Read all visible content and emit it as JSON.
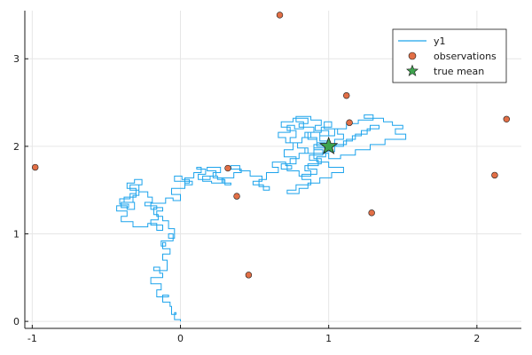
{
  "chart_data": {
    "type": "scatter",
    "title": "",
    "xlabel": "",
    "ylabel": "",
    "xlim": [
      -1.05,
      2.3
    ],
    "ylim": [
      -0.08,
      3.55
    ],
    "xticks": [
      -1,
      0,
      1,
      2
    ],
    "yticks": [
      0,
      1,
      2,
      3
    ],
    "grid": true,
    "legend_position": "top-right",
    "colors": {
      "y1": "#1ca3ec",
      "observations": "#e26f46",
      "true_mean": "#3ea44e",
      "axis": "#1a1a1a",
      "grid": "#e6e6e6"
    },
    "series": [
      {
        "name": "y1",
        "type": "line",
        "step": "pre",
        "x": [
          0.0,
          -0.04,
          -0.03,
          -0.06,
          -0.07,
          -0.12,
          -0.08,
          -0.16,
          -0.13,
          -0.2,
          -0.12,
          -0.14,
          -0.18,
          -0.09,
          -0.12,
          -0.07,
          -0.12,
          -0.1,
          -0.13,
          -0.05,
          -0.08,
          -0.04,
          -0.08,
          -0.12,
          -0.16,
          -0.12,
          -0.18,
          -0.15,
          -0.2,
          -0.12,
          -0.16,
          -0.22,
          -0.32,
          -0.4,
          -0.36,
          -0.43,
          -0.36,
          -0.31,
          -0.38,
          -0.3,
          -0.34,
          -0.26,
          -0.31,
          -0.36,
          -0.3,
          -0.34,
          -0.41,
          -0.35,
          -0.4,
          -0.32,
          -0.28,
          -0.34,
          -0.28,
          -0.22,
          -0.19,
          -0.24,
          -0.16,
          -0.2,
          -0.1,
          -0.05,
          0.0,
          -0.06,
          0.03,
          0.06,
          0.01,
          -0.04,
          0.08,
          0.03,
          0.09,
          0.14,
          0.11,
          0.17,
          0.12,
          0.2,
          0.24,
          0.18,
          0.27,
          0.22,
          0.29,
          0.21,
          0.15,
          0.25,
          0.3,
          0.34,
          0.28,
          0.36,
          0.41,
          0.34,
          0.4,
          0.47,
          0.55,
          0.49,
          0.56,
          0.6,
          0.53,
          0.58,
          0.66,
          0.62,
          0.71,
          0.75,
          0.68,
          0.74,
          0.8,
          0.86,
          0.79,
          0.74,
          0.78,
          0.72,
          0.77,
          0.83,
          0.78,
          0.88,
          0.95,
          0.91,
          1.0,
          0.94,
          0.99,
          0.92,
          0.86,
          0.95,
          1.02,
          0.97,
          1.06,
          1.1,
          1.04,
          0.9,
          0.96,
          0.87,
          0.93,
          0.84,
          0.88,
          0.8,
          0.72,
          0.78,
          0.7,
          0.76,
          0.82,
          0.88,
          0.94,
          1.04,
          1.12,
          1.2,
          1.3,
          1.24,
          1.37,
          1.43,
          1.5,
          1.45,
          1.52,
          1.38,
          1.28,
          1.18,
          1.08,
          1.0,
          0.9,
          0.98,
          0.92,
          0.84,
          0.9,
          0.8,
          0.86,
          0.76,
          0.68,
          0.74,
          0.66,
          0.71,
          0.79,
          0.84,
          0.9,
          0.95,
          0.86,
          0.92,
          0.82,
          0.88,
          0.78,
          0.72,
          0.8,
          0.86,
          0.94,
          1.02,
          1.1,
          1.0,
          0.92,
          0.98,
          1.04,
          1.1,
          1.16,
          1.22,
          1.28,
          1.34,
          1.26,
          1.18,
          1.12,
          1.05,
          1.0
        ],
        "y": [
          0.0,
          0.02,
          0.1,
          0.08,
          0.17,
          0.22,
          0.3,
          0.28,
          0.36,
          0.43,
          0.5,
          0.55,
          0.62,
          0.58,
          0.7,
          0.77,
          0.83,
          0.9,
          0.86,
          0.92,
          1.0,
          0.95,
          1.06,
          1.15,
          1.2,
          1.26,
          1.3,
          1.22,
          1.16,
          1.1,
          1.04,
          1.12,
          1.08,
          1.14,
          1.2,
          1.26,
          1.32,
          1.28,
          1.36,
          1.42,
          1.5,
          1.56,
          1.62,
          1.58,
          1.52,
          1.46,
          1.4,
          1.34,
          1.3,
          1.36,
          1.44,
          1.5,
          1.56,
          1.48,
          1.42,
          1.36,
          1.32,
          1.28,
          1.35,
          1.41,
          1.38,
          1.45,
          1.52,
          1.58,
          1.62,
          1.66,
          1.6,
          1.56,
          1.64,
          1.7,
          1.76,
          1.74,
          1.68,
          1.62,
          1.66,
          1.72,
          1.76,
          1.7,
          1.64,
          1.58,
          1.6,
          1.66,
          1.62,
          1.56,
          1.58,
          1.64,
          1.7,
          1.74,
          1.78,
          1.72,
          1.66,
          1.6,
          1.56,
          1.5,
          1.54,
          1.62,
          1.7,
          1.76,
          1.82,
          1.78,
          1.74,
          1.8,
          1.86,
          1.92,
          1.98,
          2.04,
          2.1,
          2.18,
          2.24,
          2.2,
          2.28,
          2.34,
          2.3,
          2.24,
          2.18,
          2.12,
          2.06,
          2.0,
          2.08,
          2.16,
          2.22,
          2.28,
          2.2,
          2.14,
          2.08,
          2.02,
          1.96,
          1.9,
          1.84,
          1.78,
          1.72,
          1.66,
          1.72,
          1.8,
          1.88,
          1.96,
          2.04,
          2.1,
          2.16,
          2.12,
          2.2,
          2.26,
          2.3,
          2.36,
          2.32,
          2.28,
          2.24,
          2.2,
          2.14,
          2.08,
          2.02,
          1.96,
          1.9,
          1.86,
          1.92,
          1.98,
          2.04,
          2.1,
          2.16,
          2.22,
          2.26,
          2.32,
          2.28,
          2.22,
          2.16,
          2.1,
          2.04,
          1.98,
          1.92,
          1.86,
          1.8,
          1.74,
          1.68,
          1.62,
          1.56,
          1.5,
          1.46,
          1.52,
          1.58,
          1.64,
          1.7,
          1.76,
          1.82,
          1.88,
          1.94,
          2.0,
          2.06,
          2.12,
          2.18,
          2.24,
          2.2,
          2.14,
          2.08,
          2.02,
          2.0
        ]
      },
      {
        "name": "observations",
        "type": "scatter",
        "marker": "circle",
        "points": [
          [
            0.67,
            3.5
          ],
          [
            1.12,
            2.58
          ],
          [
            1.14,
            2.27
          ],
          [
            2.2,
            2.31
          ],
          [
            -0.98,
            1.76
          ],
          [
            0.32,
            1.75
          ],
          [
            0.38,
            1.43
          ],
          [
            2.12,
            1.67
          ],
          [
            1.29,
            1.24
          ],
          [
            0.46,
            0.53
          ]
        ]
      },
      {
        "name": "true mean",
        "type": "scatter",
        "marker": "star",
        "points": [
          [
            1.0,
            2.0
          ]
        ]
      }
    ]
  }
}
